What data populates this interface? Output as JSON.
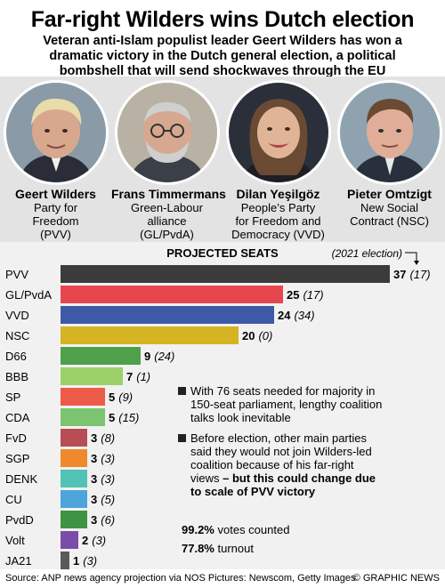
{
  "title": "Far-right Wilders wins Dutch election",
  "subtitle": "Veteran anti-Islam populist leader Geert Wilders has won a dramatic victory in the Dutch general election, a political bombshell that will send shockwaves through the EU",
  "people": [
    {
      "name": "Geert Wilders",
      "party_lines": [
        "Party for",
        "Freedom",
        "(PVV)"
      ]
    },
    {
      "name": "Frans Timmermans",
      "party_lines": [
        "Green-Labour",
        "alliance",
        "(GL/PvdA)"
      ]
    },
    {
      "name": "Dilan Yeşilgöz",
      "party_lines": [
        "People’s Party",
        "for Freedom and",
        "Democracy (VVD)"
      ]
    },
    {
      "name": "Pieter Omtzigt",
      "party_lines": [
        "New Social",
        "Contract (NSC)"
      ]
    }
  ],
  "chart_data": {
    "type": "bar",
    "orientation": "horizontal",
    "title": "PROJECTED SEATS",
    "previous_label": "(2021 election)",
    "categories": [
      "PVV",
      "GL/PvdA",
      "VVD",
      "NSC",
      "D66",
      "BBB",
      "SP",
      "CDA",
      "FvD",
      "SGP",
      "DENK",
      "CU",
      "PvdD",
      "Volt",
      "JA21"
    ],
    "series": [
      {
        "values": [
          37,
          25,
          24,
          20,
          9,
          7,
          5,
          5,
          3,
          3,
          3,
          3,
          3,
          2,
          1
        ]
      },
      {
        "values": [
          17,
          17,
          34,
          0,
          24,
          1,
          9,
          15,
          8,
          3,
          3,
          5,
          6,
          3,
          3
        ]
      }
    ],
    "previous_labels": [
      "(17)",
      "(17)",
      "(34)",
      "(0)",
      "(24)",
      "(1)",
      "(9)",
      "(15)",
      "(8)",
      "(3)",
      "(3)",
      "(5)",
      "(6)",
      "(3)",
      "(3)"
    ],
    "colors": [
      "#3b3b3b",
      "#e8464f",
      "#3d5aa6",
      "#d4b422",
      "#4fa04a",
      "#9cd16a",
      "#ee5a4a",
      "#7cc46f",
      "#b84e55",
      "#ee8a2c",
      "#52c2b5",
      "#4ea5dc",
      "#3f9443",
      "#7a4ea8",
      "#5a5a5a"
    ],
    "xlim": [
      0,
      37
    ]
  },
  "notes": [
    {
      "text": "With 76 seats needed for majority in 150-seat parliament, lengthy coalition talks look inevitable",
      "bold": ""
    },
    {
      "text": "Before election, other main parties said they would not join Wilders-led coalition because of his far-right views",
      "bold": "– but this could change due to scale of PVV victory"
    }
  ],
  "stats": [
    {
      "value": "99.2%",
      "label": "votes counted"
    },
    {
      "value": "77.8%",
      "label": "turnout"
    }
  ],
  "footer": {
    "source": "Source: ANP news agency projection via NOS   Pictures: Newscom, Getty Images",
    "brand": "© GRAPHIC NEWS"
  }
}
